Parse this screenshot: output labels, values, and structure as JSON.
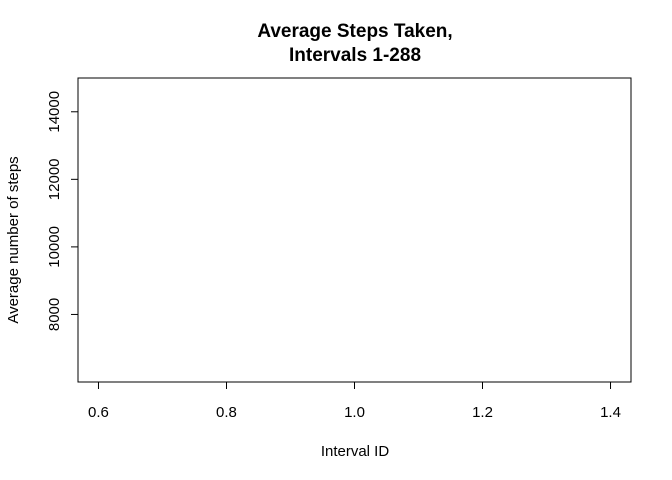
{
  "chart_data": {
    "type": "line",
    "title": "Average Steps Taken,\nIntervals 1-288",
    "title_lines": [
      "Average Steps Taken,",
      "Intervals 1-288"
    ],
    "xlabel": "Interval ID",
    "ylabel": "Average number of steps",
    "xlim": [
      0.6,
      1.4
    ],
    "ylim": [
      6000,
      15000
    ],
    "x_ticks": [
      "0.6",
      "0.8",
      "1.0",
      "1.2",
      "1.4"
    ],
    "y_ticks": [
      "8000",
      "10000",
      "12000",
      "14000"
    ],
    "series": [],
    "grid": false,
    "legend": "none",
    "colors": {
      "axis": "#000000",
      "background": "#ffffff"
    }
  }
}
